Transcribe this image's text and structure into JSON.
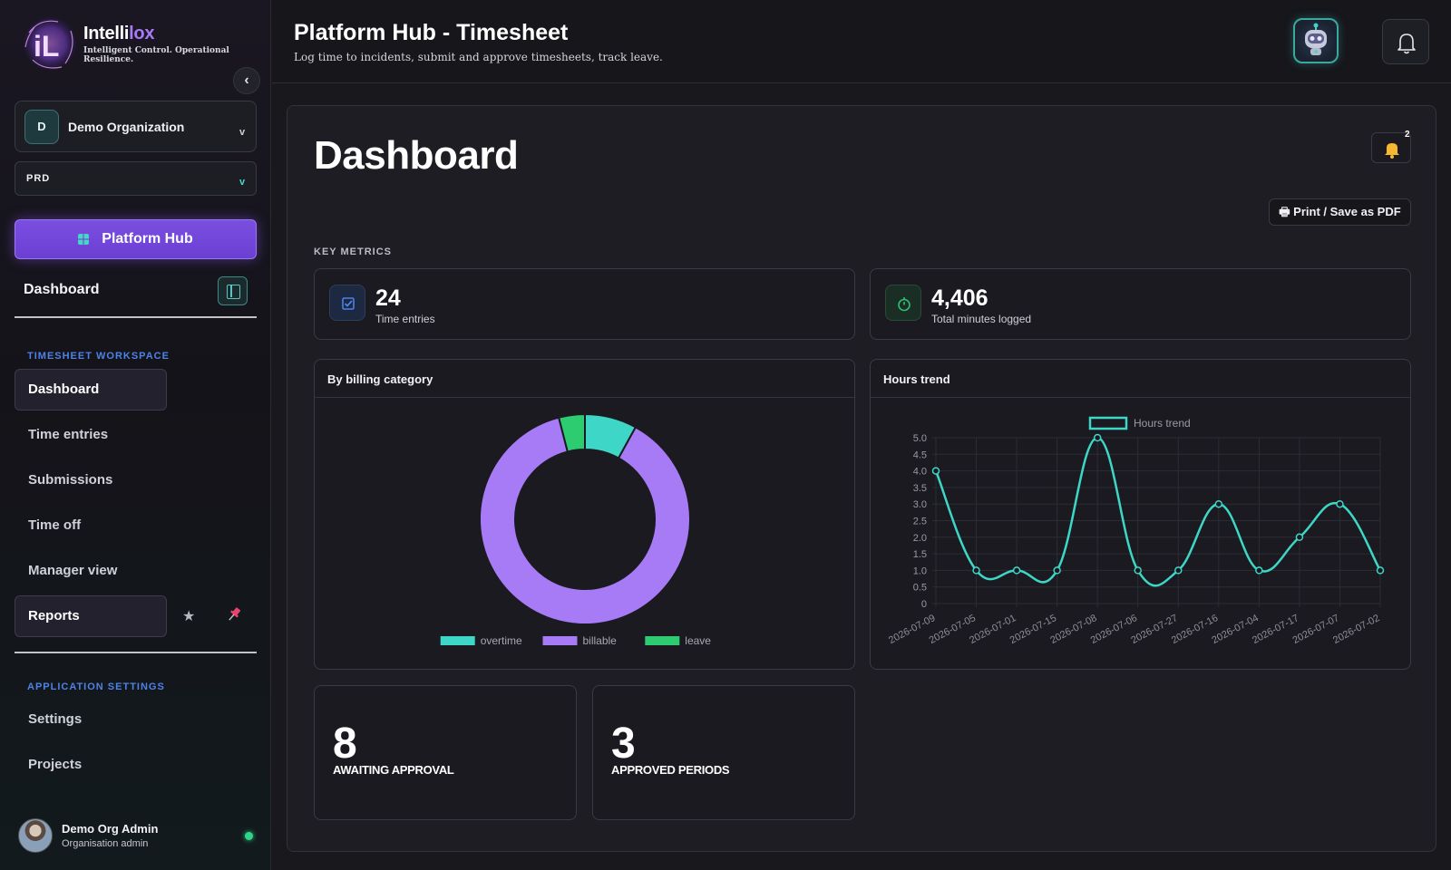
{
  "brand": {
    "name_prefix": "Intelli",
    "name_suffix": "lox",
    "tagline": "Intelligent Control. Operational Resilience."
  },
  "sidebar": {
    "collapse_glyph": "‹",
    "org": {
      "initial": "D",
      "name": "Demo Organization",
      "chevron": "v"
    },
    "env": {
      "name": "PRD",
      "chevron": "v"
    },
    "hub_button": "Platform Hub",
    "dashboard_label": "Dashboard",
    "timesheet_section": "TIMESHEET WORKSPACE",
    "timesheet_items": [
      {
        "label": "Dashboard",
        "active": true
      },
      {
        "label": "Time entries",
        "active": false
      },
      {
        "label": "Submissions",
        "active": false
      },
      {
        "label": "Time off",
        "active": false
      },
      {
        "label": "Manager view",
        "active": false
      },
      {
        "label": "Reports",
        "active": true
      }
    ],
    "settings_section": "APPLICATION SETTINGS",
    "settings_items": [
      {
        "label": "Settings"
      },
      {
        "label": "Projects"
      }
    ],
    "user": {
      "name": "Demo Org Admin",
      "role": "Organisation admin"
    }
  },
  "topbar": {
    "title": "Platform Hub - Timesheet",
    "subtitle": "Log time to incidents, submit and approve timesheets, track leave."
  },
  "dashboard": {
    "title": "Dashboard",
    "notification_count": "2",
    "pdf_button": "🖶 Print / Save as PDF",
    "key_metrics_label": "KEY METRICS",
    "metrics": [
      {
        "value": "24",
        "label": "Time entries",
        "icon": "checkbox-icon",
        "color": "#4d82e8"
      },
      {
        "value": "4,406",
        "label": "Total minutes logged",
        "icon": "stopwatch-icon",
        "color": "#2fbf71"
      }
    ],
    "summary": [
      {
        "value": "8",
        "label": "AWAITING APPROVAL"
      },
      {
        "value": "3",
        "label": "APPROVED PERIODS"
      }
    ]
  },
  "chart_data": [
    {
      "type": "pie",
      "variant": "doughnut",
      "title": "By billing category",
      "categories": [
        "overtime",
        "billable",
        "leave"
      ],
      "values": [
        8,
        88,
        4
      ],
      "colors": [
        "#3ed6c6",
        "#a77bf5",
        "#2ecc71"
      ],
      "legend": "bottom"
    },
    {
      "type": "line",
      "title": "Hours trend",
      "series": [
        {
          "name": "Hours trend",
          "x": [
            "2026-07-09",
            "2026-07-05",
            "2026-07-01",
            "2026-07-15",
            "2026-07-08",
            "2026-07-06",
            "2026-07-27",
            "2026-07-16",
            "2026-07-04",
            "2026-07-17",
            "2026-07-07",
            "2026-07-02"
          ],
          "values": [
            4,
            1,
            1,
            1,
            5,
            1,
            1,
            3,
            1,
            2,
            3,
            1
          ],
          "color": "#3ed6c6"
        }
      ],
      "yticks": [
        "0",
        "0.5",
        "1.0",
        "1.5",
        "2.0",
        "2.5",
        "3.0",
        "3.5",
        "4.0",
        "4.5",
        "5.0"
      ],
      "ylim": [
        0,
        5
      ],
      "grid": true,
      "legend": "top"
    }
  ]
}
